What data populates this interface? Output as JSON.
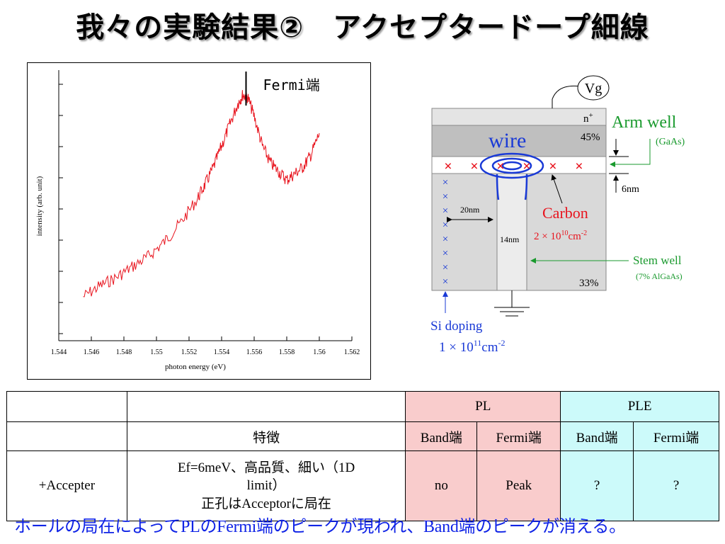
{
  "slide": {
    "title": "我々の実験結果②　アクセプタードープ細線",
    "footer": "ホールの局在によってPLのFermi端のピークが現われ、Band端のピークが消える。"
  },
  "chart_data": {
    "type": "line",
    "xlabel": "photon energy (eV)",
    "ylabel": "intensity (arb. unit)",
    "xlim": [
      1.544,
      1.562
    ],
    "x_ticks": [
      "1.544",
      "1.546",
      "1.548",
      "1.55",
      "1.552",
      "1.554",
      "1.556",
      "1.558",
      "1.56",
      "1.562"
    ],
    "series": [
      {
        "color": "#e8141e",
        "x": [
          1.5455,
          1.5465,
          1.5475,
          1.5485,
          1.5495,
          1.5505,
          1.5515,
          1.5525,
          1.553,
          1.5535,
          1.554,
          1.5545,
          1.555,
          1.5553,
          1.5556,
          1.556,
          1.5565,
          1.557,
          1.5575,
          1.558,
          1.5585,
          1.559,
          1.5595,
          1.56
        ],
        "y": [
          0.05,
          0.1,
          0.14,
          0.19,
          0.24,
          0.31,
          0.4,
          0.51,
          0.58,
          0.66,
          0.76,
          0.86,
          0.96,
          1.0,
          0.99,
          0.9,
          0.76,
          0.68,
          0.64,
          0.6,
          0.63,
          0.66,
          0.72,
          0.82
        ]
      }
    ],
    "annotation": {
      "label": "Fermi端",
      "x": 1.5555
    }
  },
  "device": {
    "gate_label": "Vg",
    "n_plus_label": "n",
    "n_plus_sup": "+",
    "top_barrier_pct": "45%",
    "wire_label": "wire",
    "arm_well_label": "Arm well",
    "arm_well_material": "(GaAs)",
    "arm_thickness": "6nm",
    "carbon_label": "Carbon",
    "carbon_conc_base": "2 × 10",
    "carbon_conc_exp": "10",
    "carbon_conc_unit": "cm",
    "carbon_conc_unit_exp": "-2",
    "spacing_label": "20nm",
    "stem_width_label": "14nm",
    "stem_well_label": "Stem well",
    "stem_well_material": "(7% AlGaAs)",
    "bottom_barrier_pct": "33%",
    "si_doping_label": "Si doping",
    "si_conc_base": "1 × 10",
    "si_conc_exp": "11",
    "si_conc_unit": "cm",
    "si_conc_unit_exp": "-2",
    "acceptor_marker": "×",
    "donor_marker": "×"
  },
  "table": {
    "pl_header": "PL",
    "ple_header": "PLE",
    "feature_header": "特徴",
    "band_edge": "Band端",
    "fermi_edge": "Fermi端",
    "row": {
      "sample": "+Accepter",
      "feature_line1": "Ef=6meV、高品質、細い（1D",
      "feature_line2": "limit）",
      "feature_line3": "正孔はAcceptorに局在",
      "pl_band": "no",
      "pl_fermi": "Peak",
      "ple_band": "?",
      "ple_fermi": "?"
    }
  }
}
